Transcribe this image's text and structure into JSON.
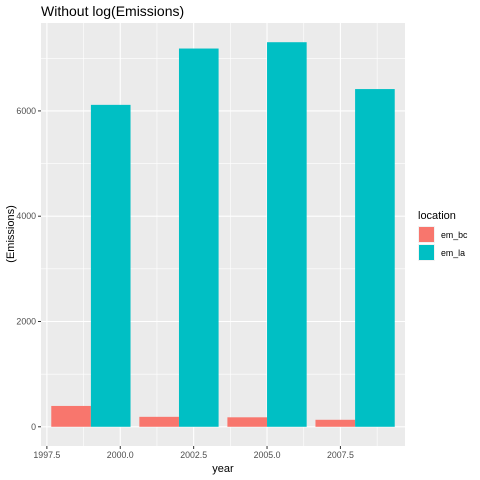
{
  "chart_data": {
    "type": "bar",
    "title": "Without log(Emissions)",
    "xlabel": "year",
    "ylabel": "(Emissions)",
    "x": [
      1999,
      2002,
      2005,
      2008
    ],
    "series": [
      {
        "name": "em_bc",
        "color": "#F8766D",
        "values": [
          396,
          189,
          180,
          133
        ]
      },
      {
        "name": "em_la",
        "color": "#00BFC4",
        "values": [
          6115,
          7185,
          7305,
          6415
        ]
      }
    ],
    "xlim": [
      1997.3,
      2009.7
    ],
    "ylim": [
      -365,
      7670
    ],
    "x_ticks": [
      {
        "value": 1997.5,
        "label": "1997.5"
      },
      {
        "value": 2000.0,
        "label": "2000.0"
      },
      {
        "value": 2002.5,
        "label": "2002.5"
      },
      {
        "value": 2005.0,
        "label": "2005.0"
      },
      {
        "value": 2007.5,
        "label": "2007.5"
      }
    ],
    "y_ticks": [
      {
        "value": 0,
        "label": "0"
      },
      {
        "value": 2000,
        "label": "2000"
      },
      {
        "value": 4000,
        "label": "4000"
      },
      {
        "value": 6000,
        "label": "6000"
      }
    ],
    "x_minor": [
      1998.75,
      2001.25,
      2003.75,
      2006.25,
      2008.75
    ],
    "y_minor": [
      1000,
      3000,
      5000,
      7000
    ],
    "bar_width_years": 2.7,
    "grid": true,
    "panel_color": "#EBEBEB",
    "legend": {
      "title": "location",
      "position": "right"
    }
  }
}
